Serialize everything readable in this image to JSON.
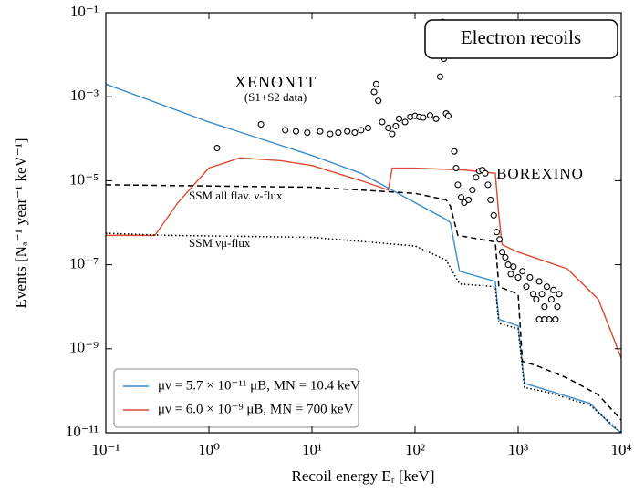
{
  "chart_data": {
    "type": "line",
    "x_label": "Recoil energy Eᵣ [keV]",
    "y_label": "Events [Nₐ⁻¹ year⁻¹ keV⁻¹]",
    "xscale": "log",
    "yscale": "log",
    "xlim": [
      0.1,
      10000
    ],
    "ylim": [
      1e-11,
      0.1
    ],
    "xticks": [
      {
        "value": 0.1,
        "label": "10⁻¹"
      },
      {
        "value": 1,
        "label": "10⁰"
      },
      {
        "value": 10,
        "label": "10¹"
      },
      {
        "value": 100,
        "label": "10²"
      },
      {
        "value": 1000,
        "label": "10³"
      },
      {
        "value": 10000,
        "label": "10⁴"
      }
    ],
    "yticks": [
      {
        "value": 1e-11,
        "label": "10⁻¹¹"
      },
      {
        "value": 1e-09,
        "label": "10⁻⁹"
      },
      {
        "value": 1e-07,
        "label": "10⁻⁷"
      },
      {
        "value": 1e-05,
        "label": "10⁻⁵"
      },
      {
        "value": 0.001,
        "label": "10⁻³"
      },
      {
        "value": 0.1,
        "label": "10⁻¹"
      }
    ],
    "legend_position": "lower left",
    "annotations": {
      "box_title": "Electron recoils",
      "xenon": "XENON1T",
      "xenon_sub": "(S1+S2 data)",
      "borexino": "BOREXINO",
      "ssm_all": "SSM all flav. ν-flux",
      "ssm_mu": "SSM νμ-flux"
    },
    "series": [
      {
        "name": "μν = 5.7 × 10⁻¹¹ μB, MN = 10.4 keV",
        "color": "#3a8cc8",
        "style": "solid",
        "x": [
          0.1,
          1,
          10,
          30,
          100,
          200,
          220,
          270,
          600,
          650,
          1000,
          1150,
          2000,
          5000,
          8000,
          10000
        ],
        "values": [
          0.002,
          0.00025,
          4e-05,
          1.5e-05,
          3e-06,
          1.2e-06,
          1e-06,
          7e-08,
          4e-08,
          5e-09,
          3.5e-09,
          1.5e-10,
          1e-10,
          5e-11,
          1.5e-11,
          1e-11
        ]
      },
      {
        "name": "μν = 6.0 × 10⁻⁹ μB, MN = 700 keV",
        "color": "#dc4a32",
        "style": "solid",
        "x": [
          0.1,
          0.3,
          0.5,
          1,
          2,
          5,
          10,
          30,
          55,
          60,
          100,
          300,
          600,
          650,
          700,
          1000,
          3000,
          6000,
          10000
        ],
        "values": [
          5e-07,
          5e-07,
          3e-06,
          2e-05,
          3.5e-05,
          3e-05,
          2.3e-05,
          1e-05,
          6e-06,
          2e-05,
          2e-05,
          1.8e-05,
          1.5e-05,
          1.5e-06,
          3e-07,
          2e-07,
          8e-08,
          1.5e-08,
          6e-10
        ]
      },
      {
        "color": "#000000",
        "style": "dashed",
        "x": [
          0.1,
          10,
          30,
          100,
          200,
          220,
          260,
          600,
          650,
          1000,
          1100,
          1500,
          3000,
          6000,
          10000
        ],
        "values": [
          8e-06,
          7e-06,
          6e-06,
          5e-06,
          3.5e-06,
          2.5e-06,
          5e-07,
          3.5e-07,
          3e-08,
          2e-08,
          5e-10,
          4e-10,
          2e-10,
          8e-11,
          2e-11
        ]
      },
      {
        "color": "#000000",
        "style": "dotted",
        "x": [
          0.1,
          0.4,
          10,
          100,
          200,
          270,
          600,
          650,
          1000,
          1150,
          2000,
          5000,
          10000
        ],
        "values": [
          5.6e-07,
          5e-07,
          4.5e-07,
          2.8e-07,
          1.3e-07,
          3.5e-08,
          3e-08,
          4e-09,
          3e-09,
          1.2e-10,
          9e-11,
          4.5e-11,
          1e-11
        ]
      },
      {
        "color": "#000000",
        "style": "markers",
        "x": [
          1.2,
          3.2,
          5.5,
          7,
          9,
          12,
          15,
          18,
          22,
          26,
          30,
          35,
          40,
          42,
          44,
          48,
          55,
          60,
          65,
          70,
          80,
          90,
          100,
          110,
          120,
          140,
          160,
          175,
          180,
          185,
          190,
          200,
          210,
          240,
          250,
          260,
          280,
          300,
          330,
          360,
          390,
          420,
          450,
          480,
          510,
          540,
          580,
          620,
          660,
          700,
          750,
          800,
          850,
          900,
          1000,
          1100,
          1200,
          1300,
          1400,
          1500,
          1600,
          1700,
          1800,
          1900,
          2000,
          2100,
          2200,
          2300,
          2400,
          2500,
          1600,
          1800
        ],
        "values": [
          6e-05,
          0.00022,
          0.00016,
          0.00015,
          0.00014,
          0.00015,
          0.00013,
          0.00014,
          0.00015,
          0.00014,
          0.00016,
          0.00018,
          0.0013,
          0.002,
          0.0008,
          0.00025,
          0.00018,
          0.00013,
          0.0002,
          0.0003,
          0.00025,
          0.00033,
          0.00035,
          0.00033,
          0.00032,
          0.00036,
          0.0003,
          0.003,
          0.02,
          0.06,
          0.008,
          0.0004,
          0.00035,
          5e-05,
          2e-05,
          8e-06,
          4e-06,
          3e-06,
          3.5e-06,
          6e-06,
          1.2e-05,
          1.7e-05,
          1.8e-05,
          1.5e-05,
          8e-06,
          3.5e-06,
          1.5e-06,
          6e-07,
          4e-07,
          2e-07,
          1.5e-07,
          1e-07,
          6e-08,
          9e-08,
          5e-08,
          7e-08,
          3e-08,
          5e-08,
          2e-08,
          1.5e-08,
          4e-08,
          2e-08,
          1e-08,
          3e-08,
          5e-09,
          1.5e-08,
          2.5e-08,
          5e-09,
          1e-08,
          2e-08,
          5e-09,
          5e-09
        ]
      }
    ]
  }
}
